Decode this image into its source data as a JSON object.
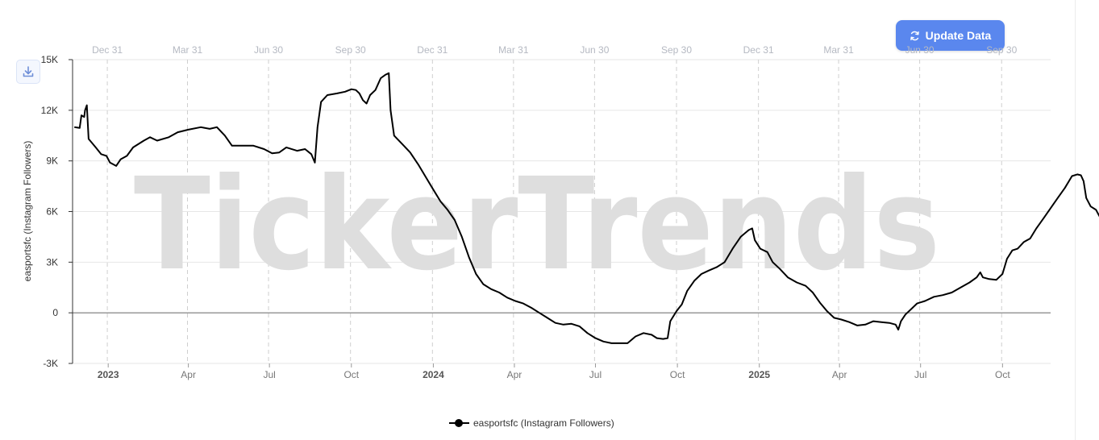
{
  "toolbar": {
    "update_label": "Update Data",
    "update_icon": "refresh-icon",
    "download_icon": "download-icon"
  },
  "watermark": "TickerTrends",
  "colors": {
    "button": "#5a87ee",
    "line": "#000000",
    "grid": "#e6e6e6",
    "watermark": "#dedede"
  },
  "chart_data": {
    "type": "line",
    "title": "",
    "ylabel": "easportsfc  (Instagram Followers)",
    "ylim": [
      -3000,
      15000
    ],
    "yticks": [
      -3000,
      0,
      3000,
      6000,
      9000,
      12000,
      15000
    ],
    "ytick_labels": [
      "-3K",
      "0",
      "3K",
      "6K",
      "9K",
      "12K",
      "15K"
    ],
    "xlim": [
      "2022-11-22",
      "2025-11-24"
    ],
    "top_axis_ticks": [
      {
        "date": "2022-12-31",
        "label": "Dec 31"
      },
      {
        "date": "2023-03-31",
        "label": "Mar 31"
      },
      {
        "date": "2023-06-30",
        "label": "Jun 30"
      },
      {
        "date": "2023-09-30",
        "label": "Sep 30"
      },
      {
        "date": "2023-12-31",
        "label": "Dec 31"
      },
      {
        "date": "2024-03-31",
        "label": "Mar 31"
      },
      {
        "date": "2024-06-30",
        "label": "Jun 30"
      },
      {
        "date": "2024-09-30",
        "label": "Sep 30"
      },
      {
        "date": "2024-12-31",
        "label": "Dec 31"
      },
      {
        "date": "2025-03-31",
        "label": "Mar 31"
      },
      {
        "date": "2025-06-30",
        "label": "Jun 30"
      },
      {
        "date": "2025-09-30",
        "label": "Sep 30"
      }
    ],
    "bottom_axis_ticks": [
      {
        "date": "2023-01-01",
        "label": "2023",
        "bold": true
      },
      {
        "date": "2023-04-01",
        "label": "Apr",
        "bold": false
      },
      {
        "date": "2023-07-01",
        "label": "Jul",
        "bold": false
      },
      {
        "date": "2023-10-01",
        "label": "Oct",
        "bold": false
      },
      {
        "date": "2024-01-01",
        "label": "2024",
        "bold": true
      },
      {
        "date": "2024-04-01",
        "label": "Apr",
        "bold": false
      },
      {
        "date": "2024-07-01",
        "label": "Jul",
        "bold": false
      },
      {
        "date": "2024-10-01",
        "label": "Oct",
        "bold": false
      },
      {
        "date": "2025-01-01",
        "label": "2025",
        "bold": true
      },
      {
        "date": "2025-04-01",
        "label": "Apr",
        "bold": false
      },
      {
        "date": "2025-07-01",
        "label": "Jul",
        "bold": false
      },
      {
        "date": "2025-10-01",
        "label": "Oct",
        "bold": false
      }
    ],
    "grid": true,
    "legend": "bottom-center",
    "series": [
      {
        "name": "easportsfc  (Instagram Followers)",
        "color": "#000000",
        "points": [
          [
            "2022-11-24",
            11000
          ],
          [
            "2022-11-30",
            10950
          ],
          [
            "2022-12-02",
            11700
          ],
          [
            "2022-12-05",
            11600
          ],
          [
            "2022-12-06",
            12000
          ],
          [
            "2022-12-08",
            12300
          ],
          [
            "2022-12-10",
            10300
          ],
          [
            "2022-12-18",
            9800
          ],
          [
            "2022-12-24",
            9400
          ],
          [
            "2022-12-30",
            9300
          ],
          [
            "2023-01-03",
            8900
          ],
          [
            "2023-01-10",
            8700
          ],
          [
            "2023-01-15",
            9100
          ],
          [
            "2023-01-22",
            9300
          ],
          [
            "2023-01-29",
            9800
          ],
          [
            "2023-02-10",
            10200
          ],
          [
            "2023-02-17",
            10400
          ],
          [
            "2023-02-25",
            10200
          ],
          [
            "2023-03-10",
            10400
          ],
          [
            "2023-03-20",
            10700
          ],
          [
            "2023-04-01",
            10850
          ],
          [
            "2023-04-15",
            11000
          ],
          [
            "2023-04-25",
            10900
          ],
          [
            "2023-05-03",
            11000
          ],
          [
            "2023-05-12",
            10500
          ],
          [
            "2023-05-20",
            9900
          ],
          [
            "2023-06-01",
            9900
          ],
          [
            "2023-06-13",
            9900
          ],
          [
            "2023-06-25",
            9700
          ],
          [
            "2023-07-04",
            9450
          ],
          [
            "2023-07-12",
            9500
          ],
          [
            "2023-07-20",
            9800
          ],
          [
            "2023-08-01",
            9600
          ],
          [
            "2023-08-10",
            9700
          ],
          [
            "2023-08-17",
            9400
          ],
          [
            "2023-08-21",
            8900
          ],
          [
            "2023-08-24",
            11000
          ],
          [
            "2023-08-28",
            12500
          ],
          [
            "2023-09-04",
            12900
          ],
          [
            "2023-09-15",
            13000
          ],
          [
            "2023-09-24",
            13100
          ],
          [
            "2023-10-01",
            13250
          ],
          [
            "2023-10-06",
            13200
          ],
          [
            "2023-10-10",
            13000
          ],
          [
            "2023-10-14",
            12600
          ],
          [
            "2023-10-18",
            12400
          ],
          [
            "2023-10-22",
            12900
          ],
          [
            "2023-10-28",
            13200
          ],
          [
            "2023-11-03",
            13900
          ],
          [
            "2023-11-08",
            14100
          ],
          [
            "2023-11-12",
            14200
          ],
          [
            "2023-11-14",
            12000
          ],
          [
            "2023-11-18",
            10500
          ],
          [
            "2023-11-27",
            10000
          ],
          [
            "2023-12-06",
            9500
          ],
          [
            "2023-12-15",
            8800
          ],
          [
            "2023-12-24",
            8000
          ],
          [
            "2024-01-01",
            7300
          ],
          [
            "2024-01-09",
            6600
          ],
          [
            "2024-01-17",
            6100
          ],
          [
            "2024-01-25",
            5500
          ],
          [
            "2024-02-02",
            4500
          ],
          [
            "2024-02-10",
            3300
          ],
          [
            "2024-02-18",
            2300
          ],
          [
            "2024-02-26",
            1700
          ],
          [
            "2024-03-06",
            1400
          ],
          [
            "2024-03-15",
            1200
          ],
          [
            "2024-03-24",
            900
          ],
          [
            "2024-04-02",
            700
          ],
          [
            "2024-04-11",
            550
          ],
          [
            "2024-04-20",
            300
          ],
          [
            "2024-04-29",
            0
          ],
          [
            "2024-05-08",
            -300
          ],
          [
            "2024-05-17",
            -600
          ],
          [
            "2024-05-26",
            -700
          ],
          [
            "2024-06-04",
            -650
          ],
          [
            "2024-06-13",
            -800
          ],
          [
            "2024-06-22",
            -1200
          ],
          [
            "2024-07-01",
            -1500
          ],
          [
            "2024-07-10",
            -1700
          ],
          [
            "2024-07-19",
            -1800
          ],
          [
            "2024-07-28",
            -1800
          ],
          [
            "2024-08-06",
            -1800
          ],
          [
            "2024-08-15",
            -1400
          ],
          [
            "2024-08-24",
            -1200
          ],
          [
            "2024-09-02",
            -1300
          ],
          [
            "2024-09-08",
            -1500
          ],
          [
            "2024-09-15",
            -1550
          ],
          [
            "2024-09-20",
            -1500
          ],
          [
            "2024-09-23",
            -500
          ],
          [
            "2024-09-30",
            100
          ],
          [
            "2024-10-06",
            500
          ],
          [
            "2024-10-12",
            1300
          ],
          [
            "2024-10-20",
            1900
          ],
          [
            "2024-10-28",
            2300
          ],
          [
            "2024-11-05",
            2500
          ],
          [
            "2024-11-14",
            2700
          ],
          [
            "2024-11-23",
            3000
          ],
          [
            "2024-12-02",
            3800
          ],
          [
            "2024-12-11",
            4500
          ],
          [
            "2024-12-20",
            4900
          ],
          [
            "2024-12-24",
            5000
          ],
          [
            "2024-12-27",
            4300
          ],
          [
            "2025-01-02",
            3800
          ],
          [
            "2025-01-10",
            3600
          ],
          [
            "2025-01-16",
            3000
          ],
          [
            "2025-01-24",
            2600
          ],
          [
            "2025-02-02",
            2100
          ],
          [
            "2025-02-12",
            1800
          ],
          [
            "2025-02-22",
            1600
          ],
          [
            "2025-03-02",
            1200
          ],
          [
            "2025-03-10",
            600
          ],
          [
            "2025-03-18",
            100
          ],
          [
            "2025-03-26",
            -300
          ],
          [
            "2025-04-03",
            -400
          ],
          [
            "2025-04-12",
            -550
          ],
          [
            "2025-04-21",
            -750
          ],
          [
            "2025-04-30",
            -700
          ],
          [
            "2025-05-09",
            -500
          ],
          [
            "2025-05-18",
            -550
          ],
          [
            "2025-05-27",
            -600
          ],
          [
            "2025-06-03",
            -700
          ],
          [
            "2025-06-06",
            -1000
          ],
          [
            "2025-06-09",
            -500
          ],
          [
            "2025-06-14",
            -100
          ],
          [
            "2025-06-20",
            200
          ],
          [
            "2025-06-27",
            550
          ],
          [
            "2025-07-06",
            700
          ],
          [
            "2025-07-16",
            950
          ],
          [
            "2025-07-26",
            1050
          ],
          [
            "2025-08-05",
            1200
          ],
          [
            "2025-08-15",
            1500
          ],
          [
            "2025-08-25",
            1800
          ],
          [
            "2025-09-02",
            2100
          ],
          [
            "2025-09-06",
            2400
          ],
          [
            "2025-09-09",
            2100
          ],
          [
            "2025-09-16",
            2000
          ],
          [
            "2025-09-24",
            1950
          ],
          [
            "2025-10-01",
            2300
          ],
          [
            "2025-10-06",
            3200
          ],
          [
            "2025-10-12",
            3700
          ],
          [
            "2025-10-18",
            3800
          ],
          [
            "2025-10-25",
            4200
          ],
          [
            "2025-11-01",
            4400
          ],
          [
            "2025-11-08",
            5000
          ],
          [
            "2025-11-16",
            5600
          ],
          [
            "2025-11-24",
            6200
          ],
          [
            "2025-12-02",
            6800
          ],
          [
            "2025-12-10",
            7400
          ],
          [
            "2025-12-18",
            8100
          ],
          [
            "2025-12-24",
            8200
          ],
          [
            "2025-12-28",
            8150
          ],
          [
            "2025-12-31",
            7800
          ],
          [
            "2026-01-03",
            6800
          ],
          [
            "2026-01-08",
            6300
          ],
          [
            "2026-01-14",
            6100
          ],
          [
            "2026-01-18",
            5700
          ],
          [
            "2026-01-22",
            5300
          ]
        ]
      }
    ]
  }
}
